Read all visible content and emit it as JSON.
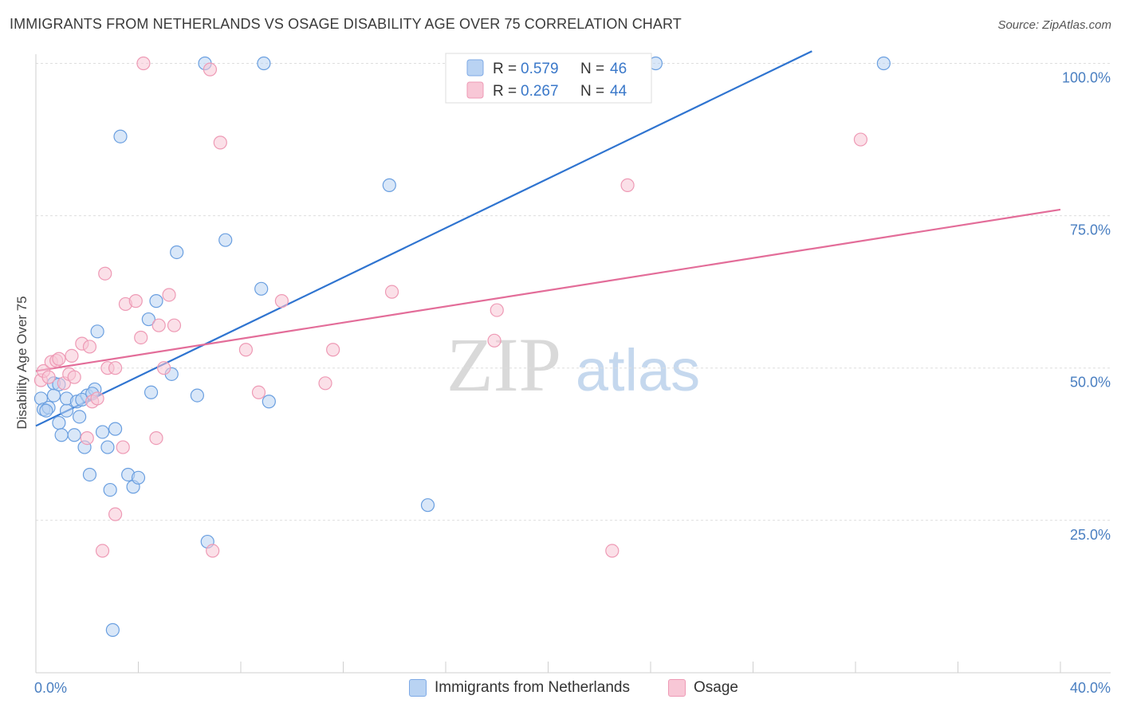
{
  "title": "IMMIGRANTS FROM NETHERLANDS VS OSAGE DISABILITY AGE OVER 75 CORRELATION CHART",
  "source": "Source: ZipAtlas.com",
  "watermark": {
    "zip": "ZIP",
    "atlas": "atlas"
  },
  "legend": {
    "rows": [
      {
        "r_label": "R =",
        "r_value": "0.579",
        "n_label": "N =",
        "n_value": "46",
        "color": "#a9c8f0"
      },
      {
        "r_label": "R =",
        "r_value": "0.267",
        "n_label": "N =",
        "n_value": "44",
        "color": "#f7b8cb"
      }
    ]
  },
  "bottom_legend": [
    {
      "label": "Immigrants from Netherlands",
      "color": "#b9d3f3"
    },
    {
      "label": "Osage",
      "color": "#f8c7d6"
    }
  ],
  "chart_data": {
    "type": "scatter",
    "title": "IMMIGRANTS FROM NETHERLANDS VS OSAGE DISABILITY AGE OVER 75 CORRELATION CHART",
    "xlabel": "",
    "ylabel": "Disability Age Over 75",
    "xlim": [
      0,
      40
    ],
    "ylim": [
      0,
      102
    ],
    "x_tick_labels": [
      "0.0%",
      "40.0%"
    ],
    "y_ticks": [
      25,
      50,
      75,
      100
    ],
    "y_tick_labels": [
      "25.0%",
      "50.0%",
      "75.0%",
      "100.0%"
    ],
    "series": [
      {
        "name": "Immigrants from Netherlands",
        "color": "#6a9fe0",
        "fill": "#b9d3f3",
        "line_color": "#2f74d0",
        "trend": {
          "x": [
            0,
            30.3
          ],
          "y": [
            40.5,
            102
          ]
        },
        "points": [
          [
            0.2,
            45
          ],
          [
            0.3,
            43.2
          ],
          [
            0.5,
            43.5
          ],
          [
            0.7,
            45.5
          ],
          [
            0.7,
            47.5
          ],
          [
            0.9,
            41
          ],
          [
            1.0,
            39
          ],
          [
            1.2,
            43
          ],
          [
            1.2,
            45
          ],
          [
            1.5,
            39
          ],
          [
            1.6,
            44.5
          ],
          [
            1.7,
            42
          ],
          [
            1.9,
            37
          ],
          [
            2.0,
            45.5
          ],
          [
            2.1,
            32.5
          ],
          [
            2.3,
            46.5
          ],
          [
            2.4,
            56
          ],
          [
            2.6,
            39.5
          ],
          [
            2.8,
            37
          ],
          [
            2.9,
            30
          ],
          [
            3.1,
            40
          ],
          [
            3.3,
            88
          ],
          [
            3.6,
            32.5
          ],
          [
            3.8,
            30.5
          ],
          [
            4.0,
            32
          ],
          [
            4.4,
            58
          ],
          [
            4.5,
            46
          ],
          [
            4.7,
            61
          ],
          [
            5.3,
            49
          ],
          [
            5.5,
            69
          ],
          [
            6.3,
            45.5
          ],
          [
            6.6,
            100
          ],
          [
            6.7,
            21.5
          ],
          [
            7.4,
            71
          ],
          [
            8.8,
            63
          ],
          [
            8.9,
            100
          ],
          [
            9.1,
            44.5
          ],
          [
            13.8,
            80
          ],
          [
            15.3,
            27.5
          ],
          [
            24.2,
            100
          ],
          [
            33.1,
            100
          ],
          [
            3.0,
            7
          ],
          [
            0.9,
            47.3
          ],
          [
            1.8,
            44.8
          ],
          [
            2.2,
            45.8
          ],
          [
            0.4,
            43
          ]
        ]
      },
      {
        "name": "Osage",
        "color": "#ee9ab5",
        "fill": "#f8c7d6",
        "line_color": "#e36d99",
        "trend": {
          "x": [
            0,
            40
          ],
          "y": [
            49.5,
            76
          ]
        },
        "points": [
          [
            0.2,
            48
          ],
          [
            0.3,
            49.5
          ],
          [
            0.5,
            48.5
          ],
          [
            0.6,
            51
          ],
          [
            0.8,
            51.2
          ],
          [
            0.9,
            51.5
          ],
          [
            1.1,
            47.5
          ],
          [
            1.3,
            49
          ],
          [
            1.4,
            52
          ],
          [
            1.5,
            48.5
          ],
          [
            1.8,
            54
          ],
          [
            2.0,
            38.5
          ],
          [
            2.1,
            53.5
          ],
          [
            2.2,
            44.5
          ],
          [
            2.4,
            45
          ],
          [
            2.6,
            20
          ],
          [
            2.7,
            65.5
          ],
          [
            2.8,
            50
          ],
          [
            3.1,
            26
          ],
          [
            3.1,
            50
          ],
          [
            3.4,
            37
          ],
          [
            3.5,
            60.5
          ],
          [
            3.9,
            61
          ],
          [
            4.1,
            55
          ],
          [
            4.2,
            100
          ],
          [
            4.7,
            38.5
          ],
          [
            4.8,
            57
          ],
          [
            5.0,
            50
          ],
          [
            5.2,
            62
          ],
          [
            5.4,
            57
          ],
          [
            6.8,
            99
          ],
          [
            6.9,
            20
          ],
          [
            7.2,
            87
          ],
          [
            8.2,
            53
          ],
          [
            8.7,
            46
          ],
          [
            9.6,
            61
          ],
          [
            11.3,
            47.5
          ],
          [
            11.6,
            53
          ],
          [
            13.9,
            62.5
          ],
          [
            17.9,
            54.5
          ],
          [
            18.0,
            59.5
          ],
          [
            22.5,
            20
          ],
          [
            23.1,
            80
          ],
          [
            32.2,
            87.5
          ]
        ]
      }
    ]
  }
}
